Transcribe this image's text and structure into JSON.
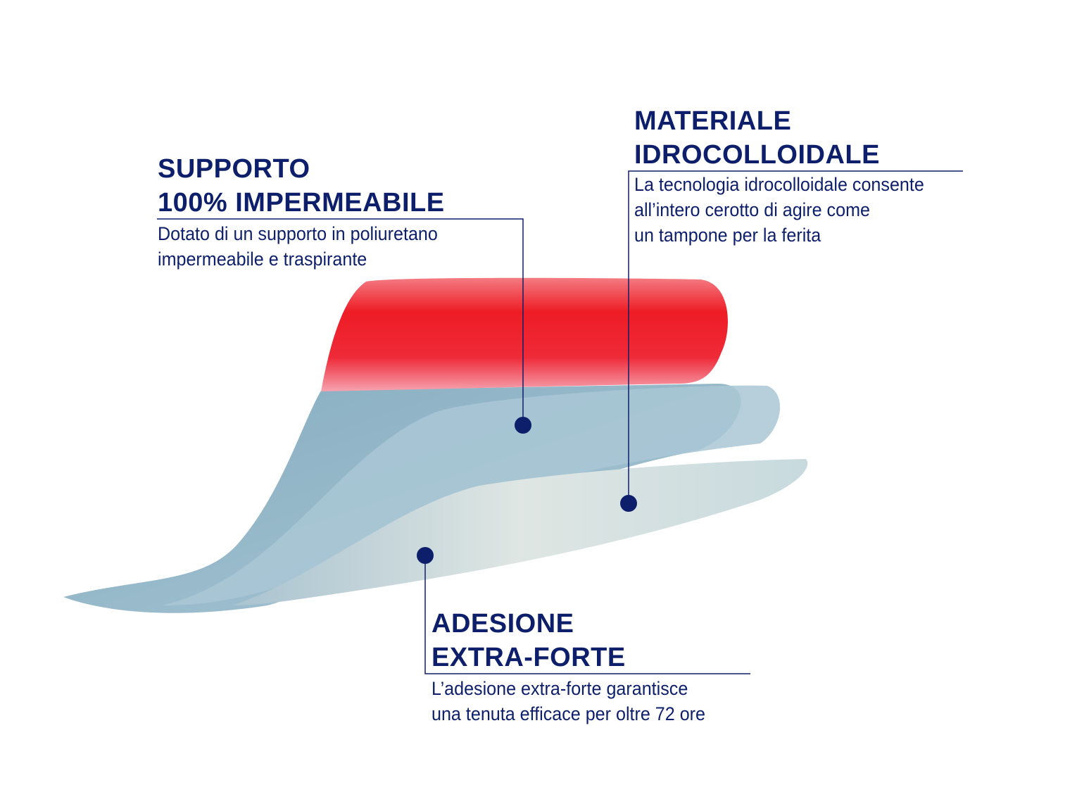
{
  "colors": {
    "text": "#0d1f6b",
    "red_layer": "#ee1c25",
    "blue_layer": "#8fb2c4",
    "gel_layer": "#c9d8da"
  },
  "callouts": [
    {
      "title_lines": [
        "SUPPORTO",
        "100% IMPERMEABILE"
      ],
      "desc_lines": [
        "Dotato di un supporto in poliuretano",
        "impermeabile e traspirante"
      ]
    },
    {
      "title_lines": [
        "MATERIALE",
        "IDROCOLLOIDALE"
      ],
      "desc_lines": [
        "La tecnologia idrocolloidale consente",
        "all’intero cerotto di agire come",
        "un tampone per la ferita"
      ]
    },
    {
      "title_lines": [
        "ADESIONE",
        "EXTRA-FORTE"
      ],
      "desc_lines": [
        "L’adesione extra-forte garantisce",
        "una tenuta efficace per oltre 72 ore"
      ]
    }
  ]
}
